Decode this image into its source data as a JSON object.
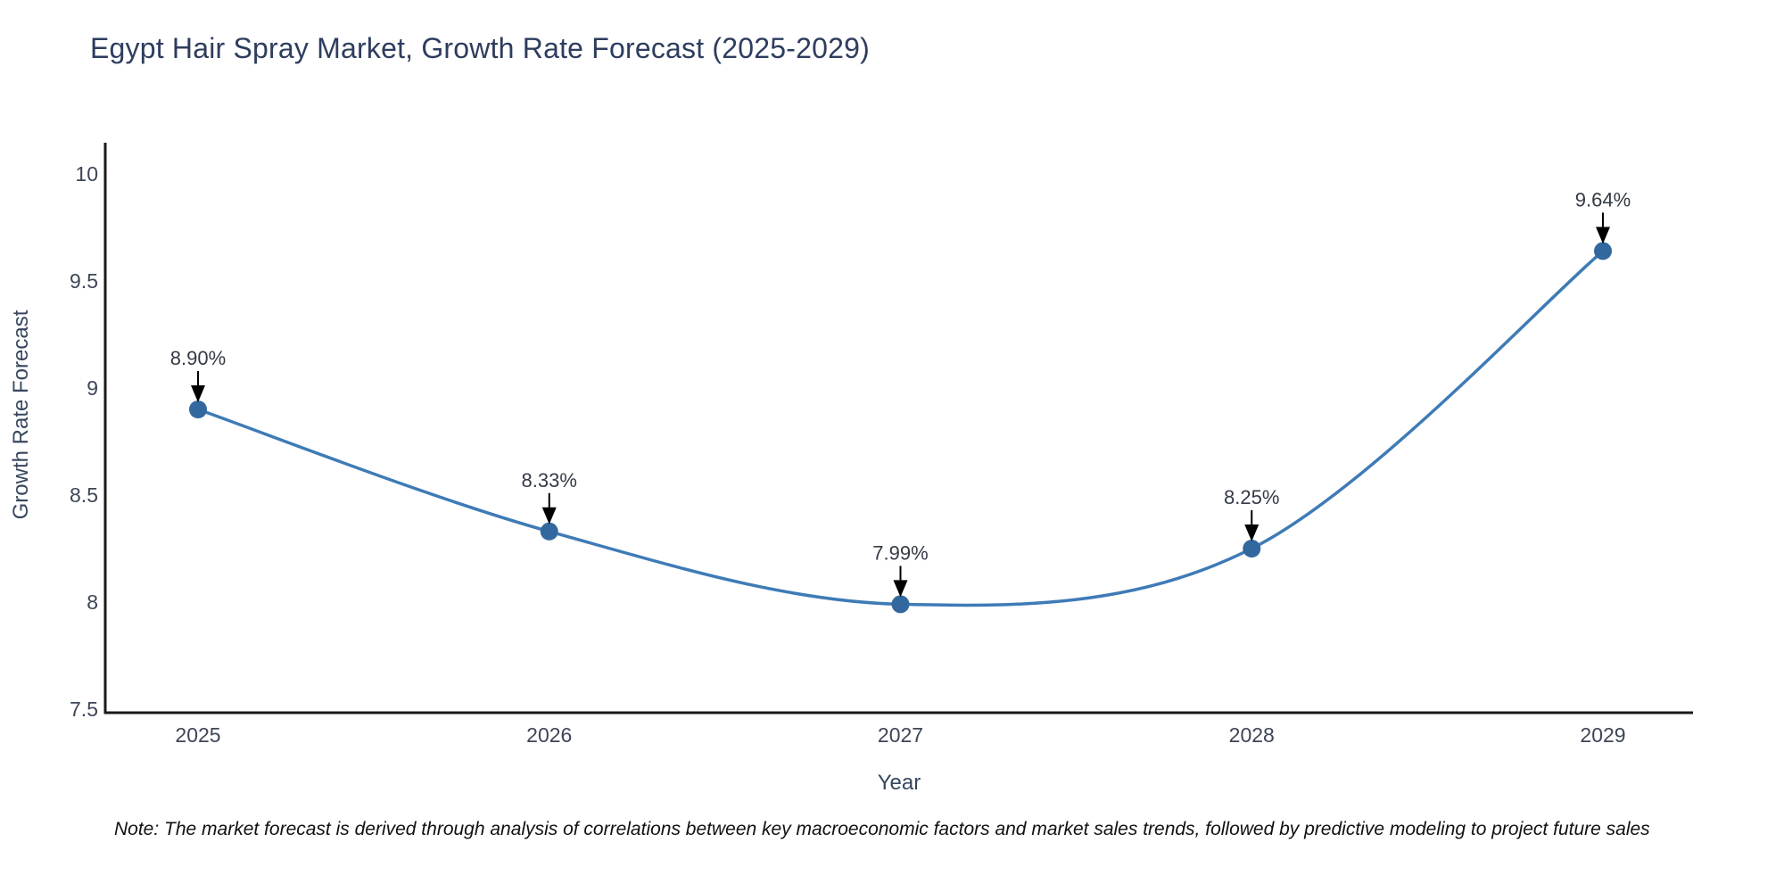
{
  "page": {
    "title": "Egypt Hair Spray Market, Growth Rate Forecast (2025-2029)",
    "note": "Note: The market forecast is derived through analysis of correlations between key macroeconomic factors and market sales trends, followed by predictive modeling to project future sales"
  },
  "chart_data": {
    "type": "line",
    "title": "Egypt Hair Spray Market, Growth Rate Forecast (2025-2029)",
    "xlabel": "Year",
    "ylabel": "Growth Rate Forecast",
    "categories": [
      "2025",
      "2026",
      "2027",
      "2028",
      "2029"
    ],
    "values": [
      8.9,
      8.33,
      7.99,
      8.25,
      9.64
    ],
    "point_labels": [
      "8.90%",
      "8.33%",
      "7.99%",
      "8.25%",
      "9.64%"
    ],
    "ylim": [
      7.5,
      10
    ],
    "yticks": [
      "7.5",
      "8",
      "8.5",
      "9",
      "9.5",
      "10"
    ],
    "line_shape": "spline",
    "grid": false,
    "legend": "none",
    "marker_style": "circle",
    "annotation_arrow": "down",
    "colors": {
      "line": "#3e7bb6",
      "marker": "#32689e",
      "arrow": "#000000",
      "title_text": "#2e3d5e",
      "axis_title_text": "#37465e",
      "tick_text": "#3d4657",
      "annotation_text": "#343a46",
      "axis_line": "#1a1a1a",
      "note_text": "#111111",
      "background": "#ffffff"
    }
  }
}
